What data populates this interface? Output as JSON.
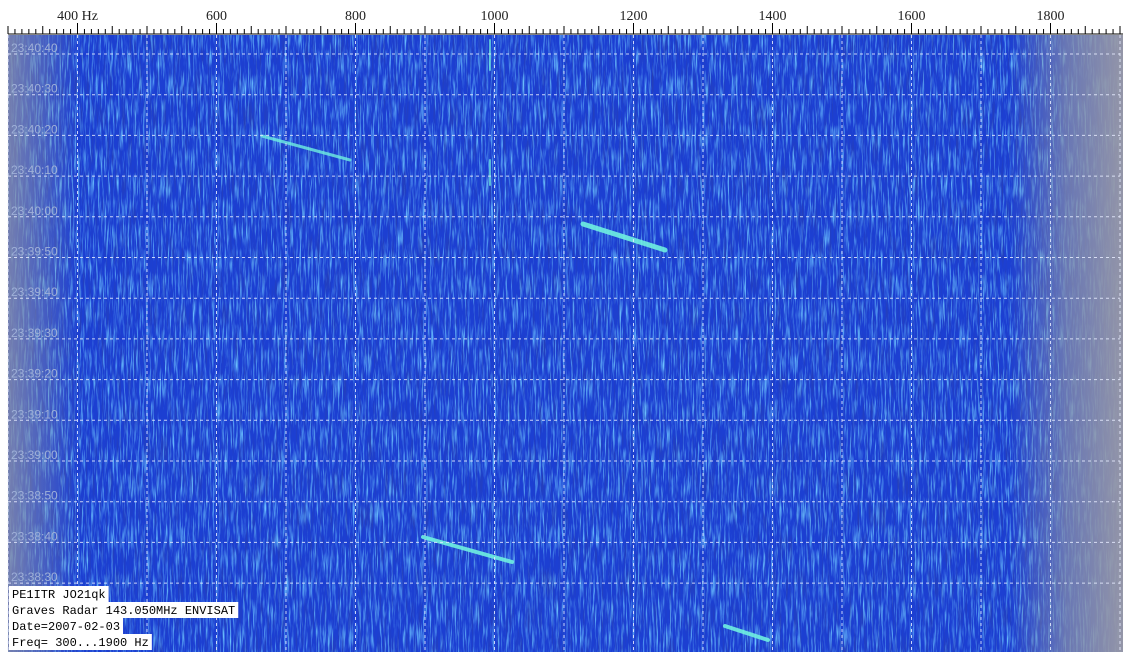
{
  "chart_data": {
    "type": "spectrogram",
    "xlim": [
      300,
      1900
    ],
    "xticks": [
      {
        "value": 400,
        "label": "400 Hz"
      },
      600,
      800,
      1000,
      1200,
      1400,
      1600,
      1800
    ],
    "time_labels": [
      "23:40:40",
      "23:40:30",
      "23:40:20",
      "23:40:10",
      "23:40:00",
      "23:39:50",
      "23:39:40",
      "23:39:30",
      "23:39:20",
      "23:39:10",
      "23:39:00",
      "23:38:50",
      "23:38:40",
      "23:38:30"
    ],
    "annotations": [
      "PE1ITR JO21qk",
      "Graves Radar 143.050MHz ENVISAT",
      "Date=2007-02-03",
      "Freq= 300...1900 Hz"
    ]
  }
}
